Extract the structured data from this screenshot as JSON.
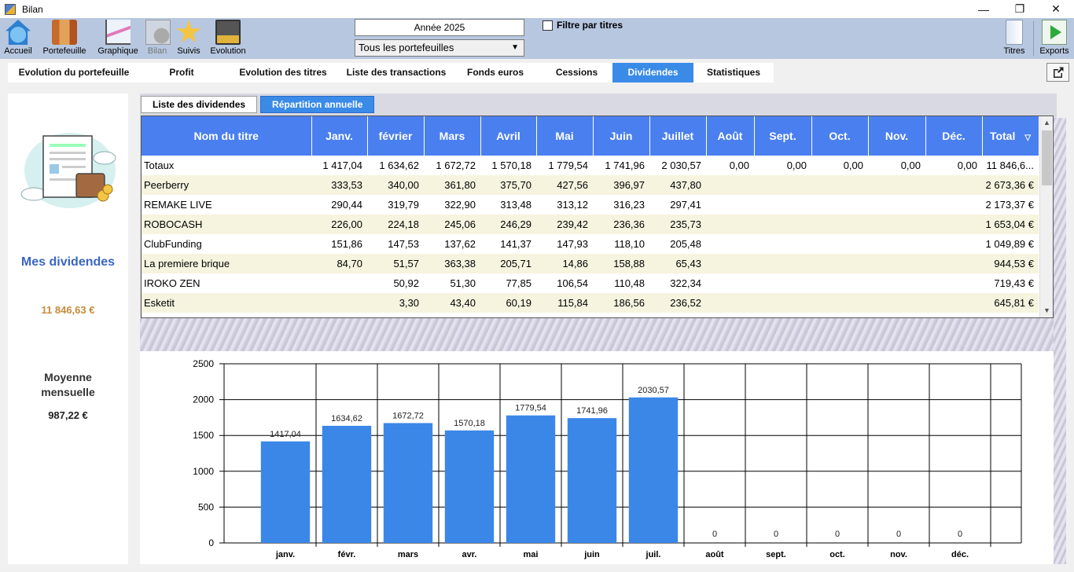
{
  "window": {
    "title": "Bilan",
    "controls": [
      "—",
      "❐",
      "✕"
    ]
  },
  "toolbar": {
    "items": [
      {
        "label": "Accueil",
        "icon": "home-icon"
      },
      {
        "label": "Portefeuille",
        "icon": "portfolio-icon"
      },
      {
        "label": "Graphique",
        "icon": "chart-icon"
      },
      {
        "label": "Bilan",
        "icon": "bilan-icon",
        "disabled": true
      },
      {
        "label": "Suivis",
        "icon": "star-icon"
      },
      {
        "label": "Evolution",
        "icon": "evolution-icon"
      }
    ],
    "right_items": [
      {
        "label": "Titres",
        "icon": "titres-icon"
      },
      {
        "label": "Exports",
        "icon": "exports-icon"
      }
    ],
    "year": "Année 2025",
    "portfolio": "Tous les portefeuilles",
    "filter_label": "Filtre par titres",
    "filter_checked": false
  },
  "tabs": [
    {
      "label": "Evolution du portefeuille",
      "active": false
    },
    {
      "label": "Profit",
      "active": false
    },
    {
      "label": "Evolution des titres",
      "active": false
    },
    {
      "label": "Liste des transactions",
      "active": false
    },
    {
      "label": "Fonds euros",
      "active": false
    },
    {
      "label": "Cessions",
      "active": false
    },
    {
      "label": "Dividendes",
      "active": true
    },
    {
      "label": "Statistiques",
      "active": false
    }
  ],
  "summary": {
    "title": "Mes dividendes",
    "total": "11 846,63 €",
    "average_label": "Moyenne mensuelle",
    "average": "987,22 €"
  },
  "subtabs": [
    {
      "label": "Liste des dividendes",
      "active": false
    },
    {
      "label": "Répartition annuelle",
      "active": true
    }
  ],
  "table": {
    "headers": [
      "Nom du titre",
      "Janv.",
      "février",
      "Mars",
      "Avril",
      "Mai",
      "Juin",
      "Juillet",
      "Août",
      "Sept.",
      "Oct.",
      "Nov.",
      "Déc.",
      "Total"
    ],
    "sort_indicator": "▽",
    "rows": [
      [
        "Totaux",
        "1 417,04",
        "1 634,62",
        "1 672,72",
        "1 570,18",
        "1 779,54",
        "1 741,96",
        "2 030,57",
        "0,00",
        "0,00",
        "0,00",
        "0,00",
        "0,00",
        "11 846,6..."
      ],
      [
        "Peerberry",
        "333,53",
        "340,00",
        "361,80",
        "375,70",
        "427,56",
        "396,97",
        "437,80",
        "",
        "",
        "",
        "",
        "",
        "2 673,36 €"
      ],
      [
        "REMAKE LIVE",
        "290,44",
        "319,79",
        "322,90",
        "313,48",
        "313,12",
        "316,23",
        "297,41",
        "",
        "",
        "",
        "",
        "",
        "2 173,37 €"
      ],
      [
        "ROBOCASH",
        "226,00",
        "224,18",
        "245,06",
        "246,29",
        "239,42",
        "236,36",
        "235,73",
        "",
        "",
        "",
        "",
        "",
        "1 653,04 €"
      ],
      [
        "ClubFunding",
        "151,86",
        "147,53",
        "137,62",
        "141,37",
        "147,93",
        "118,10",
        "205,48",
        "",
        "",
        "",
        "",
        "",
        "1 049,89 €"
      ],
      [
        "La premiere brique",
        "84,70",
        "51,57",
        "363,38",
        "205,71",
        "14,86",
        "158,88",
        "65,43",
        "",
        "",
        "",
        "",
        "",
        "944,53 €"
      ],
      [
        "IROKO ZEN",
        "",
        "50,92",
        "51,30",
        "77,85",
        "106,54",
        "110,48",
        "322,34",
        "",
        "",
        "",
        "",
        "",
        "719,43 €"
      ],
      [
        "Esketit",
        "",
        "3,30",
        "43,40",
        "60,19",
        "115,84",
        "186,56",
        "236,52",
        "",
        "",
        "",
        "",
        "",
        "645,81 €"
      ]
    ]
  },
  "chart_data": {
    "type": "bar",
    "categories": [
      "janv.",
      "févr.",
      "mars",
      "avr.",
      "mai",
      "juin",
      "juil.",
      "août",
      "sept.",
      "oct.",
      "nov.",
      "déc."
    ],
    "values": [
      1417.04,
      1634.62,
      1672.72,
      1570.18,
      1779.54,
      1741.96,
      2030.57,
      0,
      0,
      0,
      0,
      0
    ],
    "value_labels": [
      "1417,04",
      "1634,62",
      "1672,72",
      "1570,18",
      "1779,54",
      "1741,96",
      "2030,57",
      "0",
      "0",
      "0",
      "0",
      "0"
    ],
    "yticks": [
      0,
      500,
      1000,
      1500,
      2000,
      2500
    ],
    "ylim": [
      0,
      2500
    ],
    "bar_color": "#3b87e8",
    "grid": true,
    "legend": false
  }
}
